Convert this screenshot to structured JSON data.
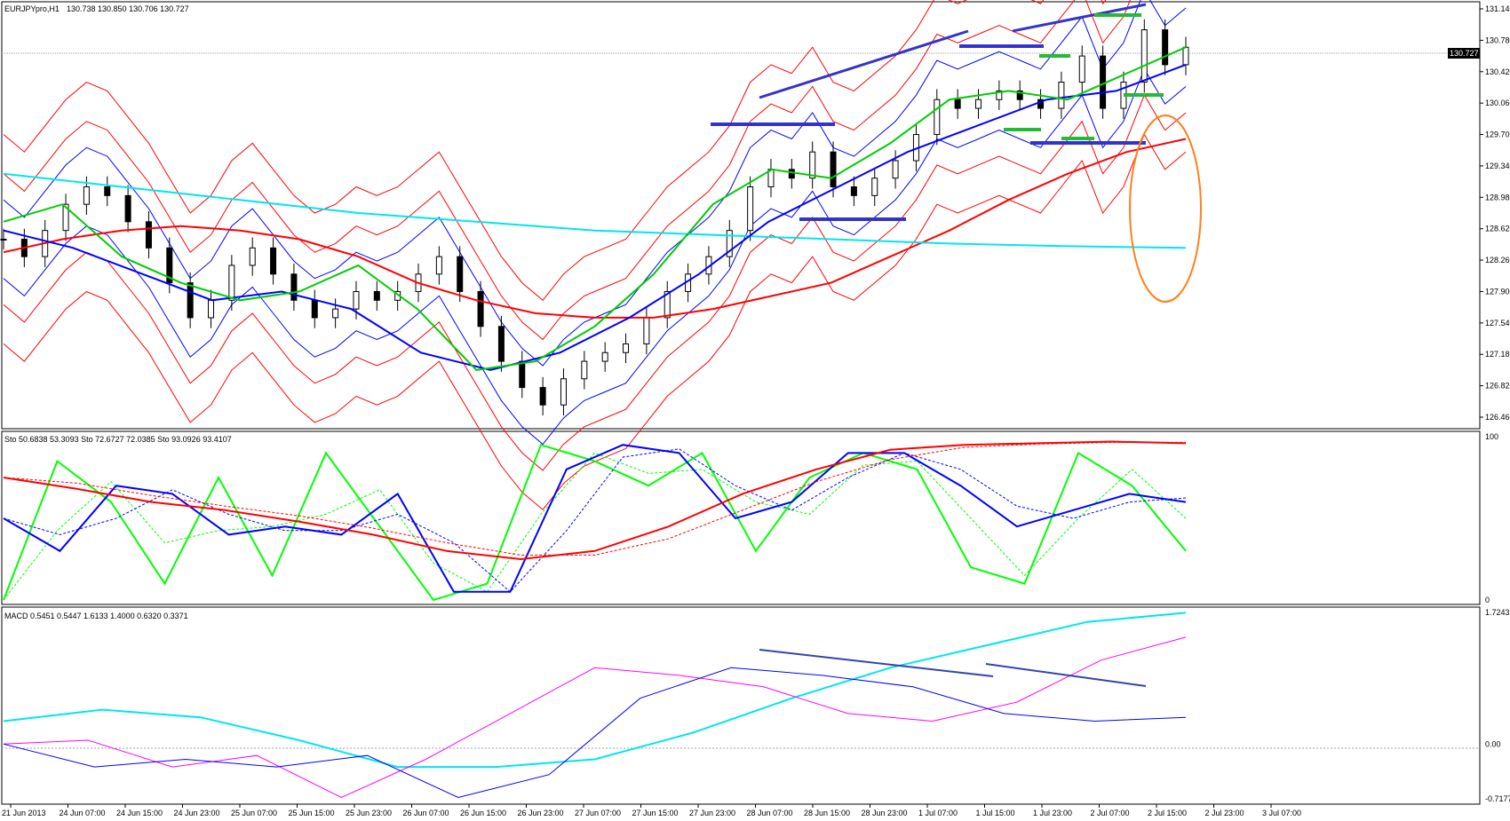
{
  "window": {
    "symbol_label": "EURJPYpro,H1",
    "ohlc_label": "130.738 130.850 130.706 130.727",
    "current_price_label": "130.727"
  },
  "chart_data": [
    {
      "type": "line",
      "pane": "price",
      "title": "EURJPYpro,H1 130.738 130.850 130.706 130.727",
      "ylim": [
        126.46,
        131.14
      ],
      "y_ticks": [
        "131.140",
        "130.780",
        "130.420",
        "130.060",
        "129.700",
        "129.340",
        "128.980",
        "128.620",
        "128.260",
        "127.900",
        "127.540",
        "127.180",
        "126.820",
        "126.460"
      ],
      "x_ticks": [
        "21 Jun 2013",
        "24 Jun 07:00",
        "24 Jun 15:00",
        "24 Jun 23:00",
        "25 Jun 07:00",
        "25 Jun 15:00",
        "25 Jun 23:00",
        "26 Jun 07:00",
        "26 Jun 15:00",
        "26 Jun 23:00",
        "27 Jun 07:00",
        "27 Jun 15:00",
        "27 Jun 23:00",
        "28 Jun 07:00",
        "28 Jun 15:00",
        "28 Jun 23:00",
        "1 Jul 07:00",
        "1 Jul 15:00",
        "1 Jul 23:00",
        "2 Jul 07:00",
        "2 Jul 15:00",
        "2 Jul 23:00",
        "3 Jul 07:00"
      ],
      "close_series": [
        128.5,
        128.3,
        128.6,
        128.9,
        129.1,
        129.0,
        128.7,
        128.4,
        128.0,
        127.6,
        127.8,
        128.2,
        128.4,
        128.1,
        127.8,
        127.6,
        127.7,
        127.9,
        127.8,
        127.9,
        128.1,
        128.3,
        127.9,
        127.5,
        127.1,
        126.8,
        126.6,
        126.9,
        127.1,
        127.2,
        127.3,
        127.6,
        127.9,
        128.1,
        128.3,
        128.6,
        129.1,
        129.3,
        129.2,
        129.5,
        129.1,
        129.0,
        129.2,
        129.4,
        129.7,
        130.1,
        130.0,
        130.1,
        130.2,
        130.1,
        130.0,
        130.3,
        130.6,
        130.0,
        130.3,
        130.9,
        130.5,
        130.7
      ],
      "series": [
        {
          "name": "",
          "color": "#ff0000",
          "role": "long moving average",
          "values": [
            128.35,
            128.5,
            128.6,
            128.65,
            128.6,
            128.5,
            128.3,
            128.0,
            127.8,
            127.65,
            127.6,
            127.6,
            127.7,
            127.85,
            128.0,
            128.3,
            128.6,
            128.95,
            129.25,
            129.5,
            129.65
          ]
        },
        {
          "name": "",
          "color": "#00e5ee",
          "role": "very long moving average",
          "values": [
            129.25,
            129.1,
            128.95,
            128.8,
            128.7,
            128.6,
            128.55,
            128.5,
            128.45,
            128.42,
            128.4
          ]
        },
        {
          "name": "",
          "color": "#0000ff",
          "role": "medium moving average",
          "values": [
            128.6,
            128.4,
            128.1,
            127.8,
            127.9,
            127.7,
            127.2,
            127.0,
            127.2,
            127.6,
            128.1,
            128.7,
            129.1,
            129.5,
            129.8,
            130.1,
            130.2,
            130.5
          ]
        },
        {
          "name": "",
          "color": "#00cc00",
          "role": "fast moving average",
          "values": [
            128.7,
            128.9,
            128.3,
            128.0,
            127.8,
            127.9,
            128.2,
            127.7,
            127.0,
            127.1,
            127.5,
            128.1,
            128.9,
            129.3,
            129.2,
            129.6,
            130.1,
            130.2,
            130.1,
            130.4,
            130.7
          ]
        }
      ],
      "annotations": [
        "blue trend line rising",
        "blue horizontal resistance lines",
        "green horizontal level marks",
        "orange ellipse at right edge"
      ]
    },
    {
      "type": "line",
      "pane": "stochastic",
      "title": "Sto 50.6838 53.3093   Sto 72.6727 72.0385   Sto 93.0926 93.4107",
      "ylim": [
        0,
        100
      ],
      "y_ticks": [
        "100",
        "0"
      ],
      "series": [
        {
          "name": "",
          "color": "#00ff00",
          "values": [
            0,
            85,
            60,
            10,
            75,
            15,
            90,
            45,
            0,
            10,
            95,
            85,
            70,
            90,
            30,
            75,
            90,
            80,
            20,
            10,
            90,
            70,
            30
          ]
        },
        {
          "name": "",
          "color": "#0000ff",
          "values": [
            50,
            30,
            70,
            65,
            40,
            45,
            40,
            65,
            5,
            5,
            80,
            95,
            90,
            50,
            60,
            90,
            90,
            70,
            45,
            55,
            65,
            60
          ]
        },
        {
          "name": "",
          "color": "#ff0000",
          "values": [
            75,
            68,
            60,
            55,
            48,
            40,
            30,
            25,
            30,
            45,
            65,
            80,
            92,
            95,
            96,
            97,
            96
          ]
        }
      ]
    },
    {
      "type": "line",
      "pane": "macd",
      "title": "MACD 0.5451 0.5447 1.6133 1.4000 0.6320 0.3371",
      "ylim": [
        -0.7177,
        1.7243
      ],
      "y_ticks": [
        "1.7243",
        "0.00",
        "-0.7177"
      ],
      "series": [
        {
          "name": "",
          "color": "#00e5ee",
          "values": [
            0.3,
            0.45,
            0.35,
            0.05,
            -0.3,
            -0.3,
            -0.2,
            0.15,
            0.6,
            1.0,
            1.3,
            1.6,
            1.72
          ]
        },
        {
          "name": "",
          "color": "#ff00ff",
          "values": [
            0.0,
            0.05,
            -0.3,
            -0.15,
            -0.7,
            -0.2,
            0.4,
            1.0,
            0.9,
            0.75,
            0.4,
            0.3,
            0.55,
            1.1,
            1.4
          ]
        },
        {
          "name": "",
          "color": "#0000ff",
          "values": [
            0.0,
            -0.3,
            -0.2,
            -0.3,
            -0.15,
            -0.7,
            -0.4,
            0.6,
            1.0,
            0.9,
            0.75,
            0.4,
            0.3,
            0.35
          ]
        }
      ]
    }
  ]
}
